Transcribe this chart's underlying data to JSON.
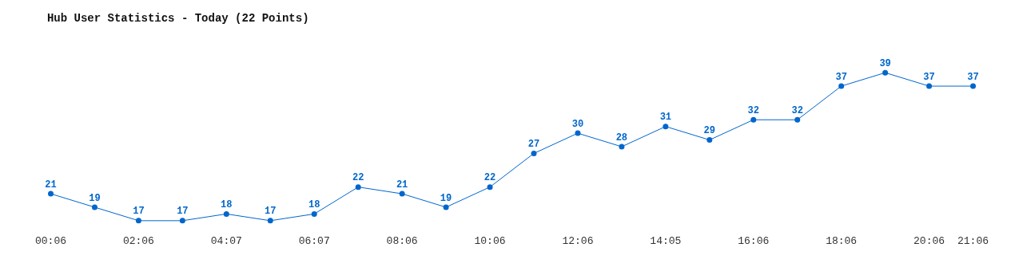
{
  "chart_data": {
    "type": "line",
    "title": "Hub User Statistics - Today (22 Points)",
    "categories": [
      "00:06",
      null,
      "02:06",
      null,
      "04:07",
      null,
      "06:07",
      null,
      "08:06",
      null,
      "10:06",
      null,
      "12:06",
      null,
      "14:05",
      null,
      "16:06",
      null,
      "18:06",
      null,
      "20:06",
      "21:06"
    ],
    "series": [
      {
        "color": "#0066cc",
        "values": [
          21,
          19,
          17,
          17,
          18,
          17,
          18,
          22,
          21,
          19,
          22,
          27,
          30,
          28,
          31,
          29,
          32,
          32,
          37,
          39,
          37,
          37
        ]
      }
    ],
    "data_labels": true,
    "marker": "circle",
    "legend": false,
    "tick_labels": "x"
  }
}
